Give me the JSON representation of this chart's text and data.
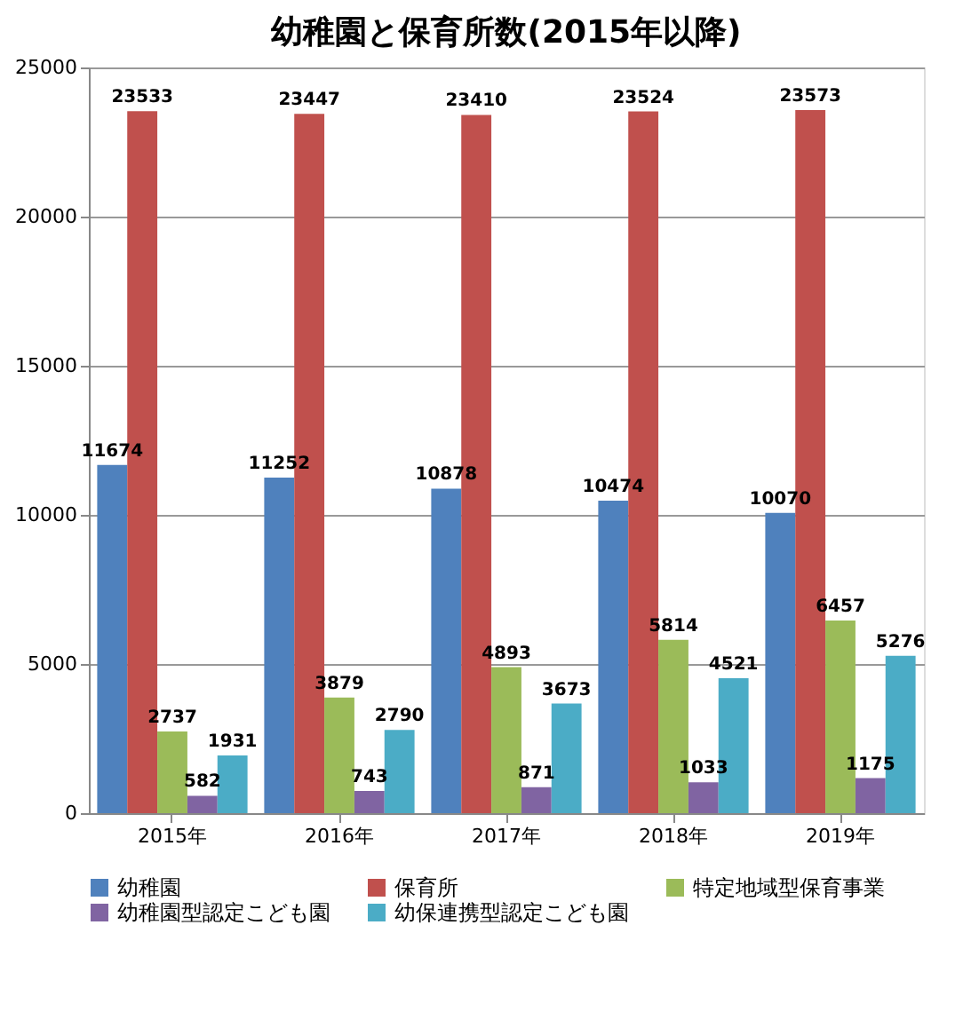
{
  "chart_data": {
    "type": "bar",
    "title": "幼稚園と保育所数(2015年以降)",
    "categories": [
      "2015年",
      "2016年",
      "2017年",
      "2018年",
      "2019年"
    ],
    "series": [
      {
        "name": "幼稚園",
        "color": "#4f81bd",
        "values": [
          11674,
          11252,
          10878,
          10474,
          10070
        ]
      },
      {
        "name": "保育所",
        "color": "#c0504d",
        "values": [
          23533,
          23447,
          23410,
          23524,
          23573
        ]
      },
      {
        "name": "特定地域型保育事業",
        "color": "#9bbb59",
        "values": [
          2737,
          3879,
          4893,
          5814,
          6457
        ]
      },
      {
        "name": "幼稚園型認定こども園",
        "color": "#8064a2",
        "values": [
          582,
          743,
          871,
          1033,
          1175
        ]
      },
      {
        "name": "幼保連携型認定こども園",
        "color": "#4bacc6",
        "values": [
          1931,
          2790,
          3673,
          4521,
          5276
        ]
      }
    ],
    "ylim": [
      0,
      25000
    ],
    "yticks": [
      0,
      5000,
      10000,
      15000,
      20000,
      25000
    ],
    "grid": "y",
    "legend": "bottom",
    "data_labels": true
  }
}
